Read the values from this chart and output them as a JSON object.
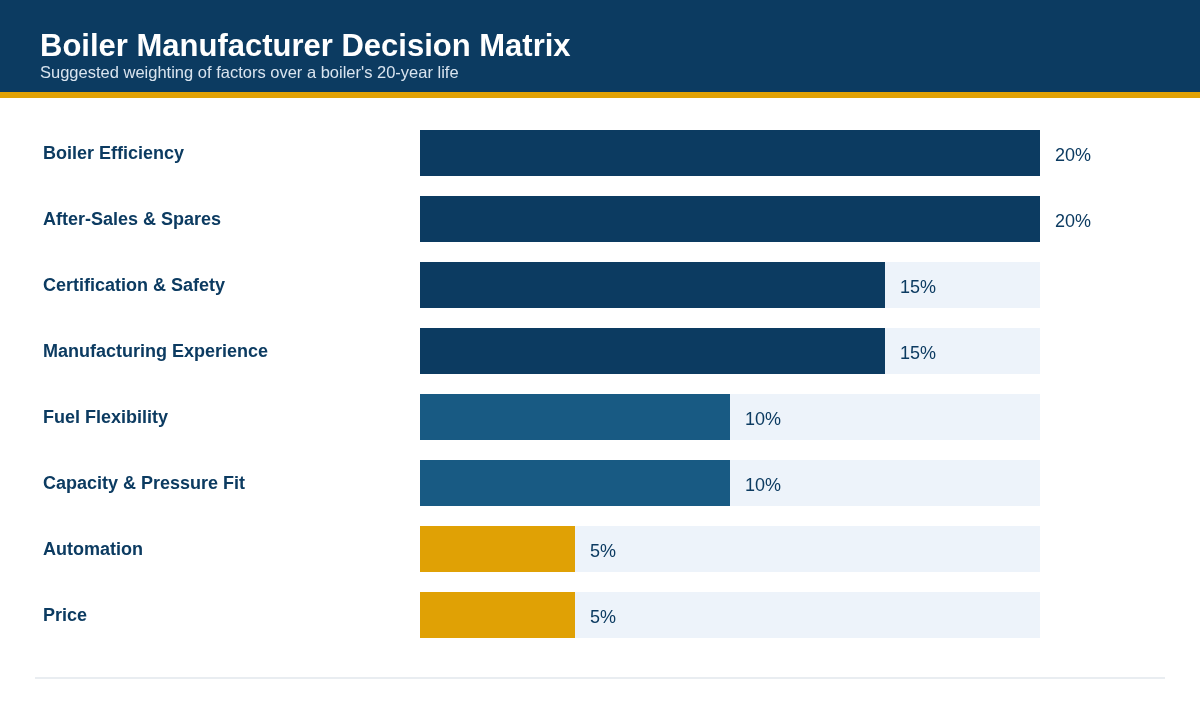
{
  "chart_data": {
    "type": "bar",
    "orientation": "horizontal",
    "title": "Boiler Manufacturer Decision Matrix",
    "subtitle": "Suggested weighting of factors over a boiler's 20-year life",
    "categories": [
      "Boiler Efficiency",
      "After-Sales & Spares",
      "Certification & Safety",
      "Manufacturing Experience",
      "Fuel Flexibility",
      "Capacity & Pressure Fit",
      "Automation",
      "Price"
    ],
    "values": [
      20,
      20,
      15,
      15,
      10,
      10,
      5,
      5
    ],
    "colors": [
      "#0c3b61",
      "#0c3b61",
      "#0c3b61",
      "#0c3b61",
      "#185a83",
      "#185a83",
      "#e0a105",
      "#e0a105"
    ],
    "value_labels": [
      "20%",
      "20%",
      "15%",
      "15%",
      "10%",
      "10%",
      "5%",
      "5%"
    ],
    "xlim": [
      0,
      20
    ],
    "tick_labels": "y"
  }
}
